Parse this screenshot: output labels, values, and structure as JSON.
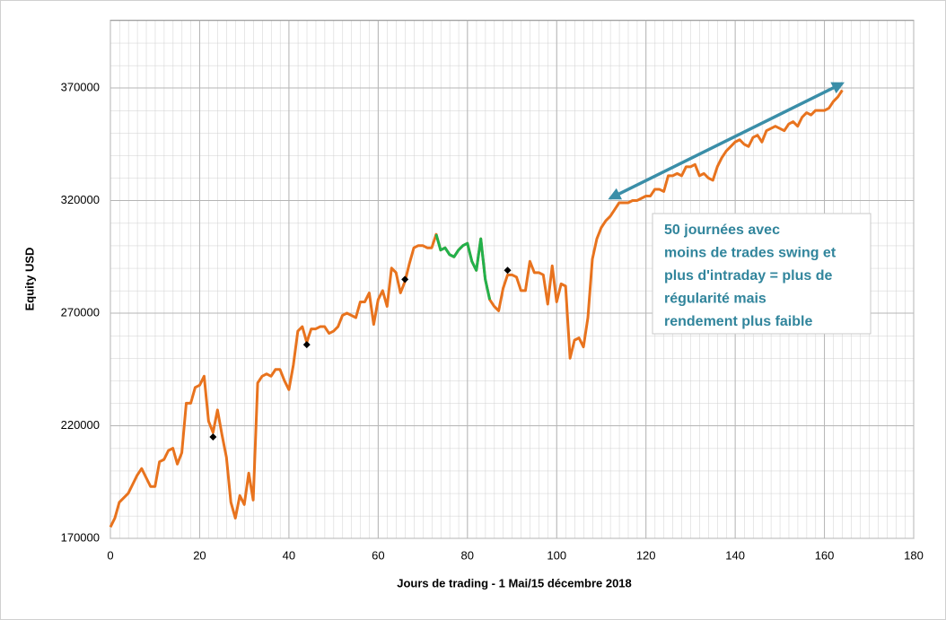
{
  "chart_data": {
    "type": "line",
    "xlabel": "Jours de trading - 1 Mai/15 décembre 2018",
    "ylabel": "Equity USD",
    "xlim": [
      0,
      180
    ],
    "xticks": [
      0,
      20,
      40,
      60,
      80,
      100,
      120,
      140,
      160,
      180
    ],
    "ylim": [
      170000,
      400000
    ],
    "yticks": [
      170000,
      220000,
      270000,
      320000,
      370000
    ],
    "grid": true,
    "x": [
      0,
      1,
      2,
      3,
      4,
      5,
      6,
      7,
      8,
      9,
      10,
      11,
      12,
      13,
      14,
      15,
      16,
      17,
      18,
      19,
      20,
      21,
      22,
      23,
      24,
      25,
      26,
      27,
      28,
      29,
      30,
      31,
      32,
      33,
      34,
      35,
      36,
      37,
      38,
      39,
      40,
      41,
      42,
      43,
      44,
      45,
      46,
      47,
      48,
      49,
      50,
      51,
      52,
      53,
      54,
      55,
      56,
      57,
      58,
      59,
      60,
      61,
      62,
      63,
      64,
      65,
      66,
      67,
      68,
      69,
      70,
      71,
      72,
      73,
      74,
      75,
      76,
      77,
      78,
      79,
      80,
      81,
      82,
      83,
      84,
      85,
      86,
      87,
      88,
      89,
      90,
      91,
      92,
      93,
      94,
      95,
      96,
      97,
      98,
      99,
      100,
      101,
      102,
      103,
      104,
      105,
      106,
      107,
      108,
      109,
      110,
      111,
      112,
      113,
      114,
      115,
      116,
      117,
      118,
      119,
      120,
      121,
      122,
      123,
      124,
      125,
      126,
      127,
      128,
      129,
      130,
      131,
      132,
      133,
      134,
      135,
      136,
      137,
      138,
      139,
      140,
      141,
      142,
      143,
      144,
      145,
      146,
      147,
      148,
      149,
      150,
      151,
      152,
      153,
      154,
      155,
      156,
      157,
      158,
      159,
      160,
      161,
      162,
      163,
      164
    ],
    "series": [
      {
        "color": "#e8731e",
        "values": [
          175000,
          179000,
          186000,
          188000,
          190000,
          194000,
          198000,
          201000,
          197000,
          193000,
          193000,
          204000,
          205000,
          209000,
          210000,
          203000,
          208000,
          230000,
          230000,
          237000,
          238000,
          242000,
          222000,
          217000,
          227000,
          216000,
          206000,
          186000,
          179000,
          189000,
          185000,
          199000,
          187000,
          239000,
          242000,
          243000,
          242000,
          245000,
          245000,
          240000,
          236000,
          247000,
          262000,
          264000,
          257000,
          263000,
          263000,
          264000,
          264000,
          261000,
          262000,
          264000,
          269000,
          270000,
          269000,
          268000,
          275000,
          275000,
          279000,
          265000,
          276000,
          280000,
          273000,
          290000,
          288000,
          279000,
          284000,
          292000,
          299000,
          300000,
          300000,
          299000,
          299000,
          305000,
          298000,
          299000,
          296000,
          295000,
          298000,
          300000,
          301000,
          293000,
          289000,
          303000,
          285000,
          276000,
          273000,
          271000,
          281000,
          287000,
          287000,
          286000,
          280000,
          280000,
          293000,
          288000,
          288000,
          287000,
          274000,
          291000,
          275000,
          283000,
          282000,
          250000,
          258000,
          259000,
          255000,
          268000,
          294000,
          303000,
          308000,
          311000,
          313000,
          316000,
          319000,
          319000,
          319000,
          320000,
          320000,
          321000,
          322000,
          322000,
          325000,
          325000,
          324000,
          331000,
          331000,
          332000,
          331000,
          335000,
          335000,
          336000,
          331000,
          332000,
          330000,
          329000,
          335000,
          339000,
          342000,
          344000,
          346000,
          347000,
          345000,
          344000,
          348000,
          349000,
          346000,
          351000,
          352000,
          353000,
          352000,
          351000,
          354000,
          355000,
          353000,
          357000,
          359000,
          358000,
          360000,
          360000,
          360000,
          361000,
          364000,
          366000,
          369000
        ]
      },
      {
        "color": "#22b14c",
        "x": [
          73,
          74,
          75,
          76,
          77,
          78,
          79,
          80,
          81,
          82,
          83,
          84,
          85
        ],
        "values": [
          305000,
          298000,
          299000,
          296000,
          295000,
          298000,
          300000,
          301000,
          293000,
          289000,
          303000,
          285000,
          276000
        ]
      }
    ],
    "markers": {
      "color": "#000000",
      "x": [
        23,
        44,
        66,
        89
      ],
      "values": [
        215000,
        256000,
        285000,
        289000
      ]
    },
    "annotation": {
      "lines": [
        "50 journées avec",
        "moins de trades swing et",
        "plus d'intraday = plus de",
        "régularité mais",
        "rendement plus faible"
      ],
      "color": "#31859c"
    },
    "arrow": {
      "color": "#3a8ea8",
      "x": [
        112,
        164
      ],
      "values": [
        321000,
        372000
      ]
    }
  }
}
